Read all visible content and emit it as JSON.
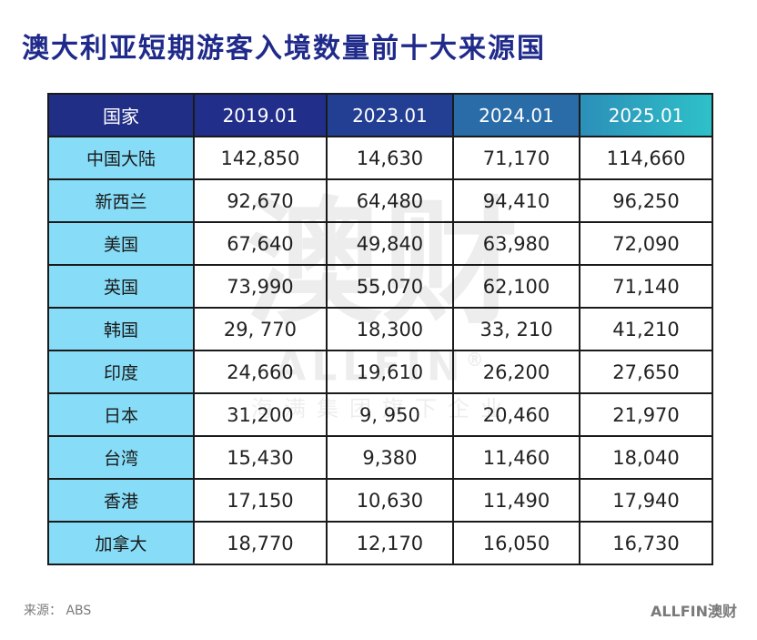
{
  "title": "澳大利亚短期游客入境数量前十大来源国",
  "table": {
    "headers": [
      "国家",
      "2019.01",
      "2023.01",
      "2024.01",
      "2025.01"
    ],
    "rows": [
      [
        "中国大陆",
        "142,850",
        "14,630",
        "71,170",
        "114,660"
      ],
      [
        "新西兰",
        "92,670",
        "64,480",
        "94,410",
        "96,250"
      ],
      [
        "美国",
        "67,640",
        "49,840",
        "63,980",
        "72,090"
      ],
      [
        "英国",
        "73,990",
        "55,070",
        "62,100",
        "71,140"
      ],
      [
        "韩国",
        "29, 770",
        "18,300",
        "33, 210",
        "41,210"
      ],
      [
        "印度",
        "24,660",
        "19,610",
        "26,200",
        "27,650"
      ],
      [
        "日本",
        "31,200",
        "9, 950",
        "20,460",
        "21,970"
      ],
      [
        "台湾",
        "15,430",
        "9,380",
        "11,460",
        "18,040"
      ],
      [
        "香港",
        "17,150",
        "10,630",
        "11,490",
        "17,940"
      ],
      [
        "加拿大",
        "18,770",
        "12,170",
        "16,050",
        "16,730"
      ]
    ]
  },
  "watermark": {
    "big": "澳财",
    "en": "ALLFIN",
    "mark": "®",
    "sub": "海满集团旗下企业"
  },
  "footer": {
    "source": "来源： ABS",
    "logo": "ALLFIN澳财"
  },
  "colors": {
    "title": "#1f2a8a",
    "region_cell": "#87dcf7",
    "header_dark": "#202e86",
    "header_teal": "#2ec1c9"
  }
}
